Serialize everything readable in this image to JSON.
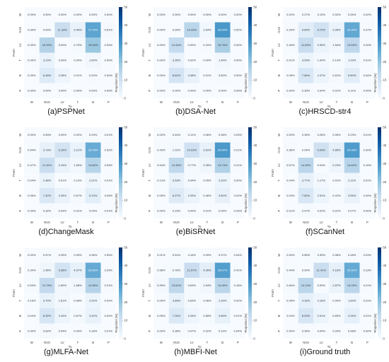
{
  "figure": {
    "categories": [
      "W",
      "NVS",
      "LV",
      "T",
      "B",
      "P"
    ],
    "xlabel": "To",
    "ylabel": "From",
    "colorbar_label": "Proportion (%)",
    "colorbar_ticks": [
      0,
      10,
      20,
      30,
      40,
      50
    ],
    "colormap": [
      "#f7fbff",
      "#deebf7",
      "#c6dbef",
      "#9ecae1",
      "#6baed6",
      "#4292c6",
      "#2171b5",
      "#08519c",
      "#08306b"
    ]
  },
  "chart_data": [
    {
      "type": "heatmap",
      "caption": "(a)PSPNet",
      "x": [
        "W",
        "NVS",
        "LV",
        "T",
        "B",
        "P"
      ],
      "y": [
        "W",
        "NVS",
        "LV",
        "T",
        "B",
        "P"
      ],
      "xlabel": "To",
      "ylabel": "From",
      "zlim": [
        0,
        50
      ],
      "values": [
        [
          "0.00%",
          "0.00%",
          "0.00%",
          "0.00%",
          "0.00%",
          "0.00%"
        ],
        [
          "0.00%",
          "0.00%",
          "11.33%",
          "3.49%",
          "27.15%",
          "0.61%"
        ],
        [
          "0.00%",
          "15.39%",
          "0.00%",
          "0.79%",
          "19.26%",
          "0.00%"
        ],
        [
          "0.00%",
          "3.23%",
          "0.09%",
          "0.00%",
          "1.60%",
          "0.00%"
        ],
        [
          "0.00%",
          "6.48%",
          "2.28%",
          "0.01%",
          "0.20%",
          "0.00%"
        ],
        [
          "0.00%",
          "0.00%",
          "0.00%",
          "0.00%",
          "0.00%",
          "0.00%"
        ]
      ]
    },
    {
      "type": "heatmap",
      "caption": "(b)DSA-Net",
      "x": [
        "W",
        "NVS",
        "LV",
        "T",
        "B",
        "P"
      ],
      "y": [
        "W",
        "NVS",
        "LV",
        "T",
        "B",
        "P"
      ],
      "xlabel": "To",
      "ylabel": "From",
      "zlim": [
        0,
        50
      ],
      "values": [
        [
          "0.00%",
          "0.00%",
          "0.00%",
          "0.00%",
          "0.00%",
          "0.00%"
        ],
        [
          "0.00%",
          "0.00%",
          "14.43%",
          "1.64%",
          "30.00%",
          "0.52%"
        ],
        [
          "0.00%",
          "12.64%",
          "0.00%",
          "0.20%",
          "16.76%",
          "0.00%"
        ],
        [
          "0.00%",
          "3.35%",
          "0.02%",
          "0.00%",
          "1.44%",
          "0.00%"
        ],
        [
          "0.00%",
          "8.81%",
          "3.38%",
          "0.01%",
          "0.82%",
          "0.00%"
        ],
        [
          "0.00%",
          "0.00%",
          "0.00%",
          "0.00%",
          "0.00%",
          "0.00%"
        ]
      ]
    },
    {
      "type": "heatmap",
      "caption": "(c)HRSCD-str4",
      "x": [
        "W",
        "NVS",
        "LV",
        "T",
        "B",
        "P"
      ],
      "y": [
        "W",
        "NVS",
        "LV",
        "T",
        "B",
        "P"
      ],
      "xlabel": "To",
      "ylabel": "From",
      "zlim": [
        0,
        50
      ],
      "values": [
        [
          "0.02%",
          "0.27%",
          "0.10%",
          "0.02%",
          "0.26%",
          "0.02%"
        ],
        [
          "0.29%",
          "5.60%",
          "9.72%",
          "3.28%",
          "26.30%",
          "0.37%"
        ],
        [
          "0.46%",
          "11.83%",
          "2.95%",
          "1.54%",
          "13.53%",
          "0.20%"
        ],
        [
          "0.01%",
          "3.09%",
          "1.00%",
          "0.13%",
          "1.93%",
          "0.01%"
        ],
        [
          "0.05%",
          "7.84%",
          "2.47%",
          "0.61%",
          "5.60%",
          "0.04%"
        ],
        [
          "0.00%",
          "0.30%",
          "0.04%",
          "0.01%",
          "0.11%",
          "0.00%"
        ]
      ]
    },
    {
      "type": "heatmap",
      "caption": "(d)ChangeMask",
      "x": [
        "W",
        "NVS",
        "LV",
        "T",
        "B",
        "P"
      ],
      "y": [
        "W",
        "NVS",
        "LV",
        "T",
        "B",
        "P"
      ],
      "xlabel": "To",
      "ylabel": "From",
      "zlim": [
        0,
        50
      ],
      "values": [
        [
          "0.00%",
          "0.53%",
          "0.09%",
          "0.02%",
          "0.29%",
          "0.01%"
        ],
        [
          "0.54%",
          "3.73%",
          "9.19%",
          "3.21%",
          "25.45%",
          "0.32%"
        ],
        [
          "0.47%",
          "11.32%",
          "3.15%",
          "1.54%",
          "14.82%",
          "0.09%"
        ],
        [
          "0.04%",
          "2.98%",
          "0.01%",
          "0.10%",
          "2.01%",
          "0.01%"
        ],
        [
          "0.06%",
          "7.42%",
          "3.28%",
          "0.67%",
          "5.13%",
          "0.05%"
        ],
        [
          "0.00%",
          "0.32%",
          "0.03%",
          "0.01%",
          "0.09%",
          "0.01%"
        ]
      ]
    },
    {
      "type": "heatmap",
      "caption": "(e)BiSRNet",
      "x": [
        "W",
        "NVS",
        "LV",
        "T",
        "B",
        "P"
      ],
      "y": [
        "W",
        "NVS",
        "LV",
        "T",
        "B",
        "P"
      ],
      "xlabel": "To",
      "ylabel": "From",
      "zlim": [
        0,
        50
      ],
      "values": [
        [
          "0.02%",
          "0.44%",
          "0.11%",
          "0.06%",
          "0.36%",
          "0.03%"
        ],
        [
          "0.43%",
          "1.01%",
          "10.03%",
          "3.81%",
          "29.65%",
          "0.21%"
        ],
        [
          "0.54%",
          "13.35%",
          "0.77%",
          "2.05%",
          "15.74%",
          "0.21%"
        ],
        [
          "0.13%",
          "3.53%",
          "0.94%",
          "0.05%",
          "2.52%",
          "0.00%"
        ],
        [
          "0.05%",
          "6.27%",
          "2.93%",
          "0.46%",
          "3.82%",
          "0.02%"
        ],
        [
          "0.00%",
          "0.23%",
          "0.00%",
          "0.01%",
          "0.09%",
          "0.03%"
        ]
      ]
    },
    {
      "type": "heatmap",
      "caption": "(f)SCanNet",
      "x": [
        "W",
        "NVS",
        "LV",
        "T",
        "B",
        "P"
      ],
      "y": [
        "W",
        "NVS",
        "LV",
        "T",
        "B",
        "P"
      ],
      "xlabel": "To",
      "ylabel": "From",
      "zlim": [
        0,
        50
      ],
      "values": [
        [
          "0.00%",
          "0.35%",
          "0.28%",
          "0.05%",
          "0.23%",
          "0.01%"
        ],
        [
          "0.36%",
          "0.04%",
          "9.93%",
          "4.85%",
          "29.08%",
          "0.30%"
        ],
        [
          "0.57%",
          "14.06%",
          "0.04%",
          "2.23%",
          "14.84%",
          "0.15%"
        ],
        [
          "0.04%",
          "3.77%",
          "1.17%",
          "0.01%",
          "2.11%",
          "0.01%"
        ],
        [
          "0.03%",
          "7.82%",
          "2.51%",
          "0.41%",
          "3.55%",
          "0.00%"
        ],
        [
          "0.01%",
          "0.47%",
          "0.02%",
          "0.01%",
          "0.07%",
          "0.00%"
        ]
      ]
    },
    {
      "type": "heatmap",
      "caption": "(g)MLFA-Net",
      "x": [
        "W",
        "NVS",
        "LV",
        "T",
        "B",
        "P"
      ],
      "y": [
        "W",
        "NVS",
        "LV",
        "T",
        "B",
        "P"
      ],
      "xlabel": "To",
      "ylabel": "From",
      "zlim": [
        0,
        50
      ],
      "values": [
        [
          "0.02%",
          "0.57%",
          "0.25%",
          "0.09%",
          "0.36%",
          "0.05%"
        ],
        [
          "0.34%",
          "1.96%",
          "9.38%",
          "4.07%",
          "25.80%",
          "0.29%"
        ],
        [
          "0.53%",
          "12.78%",
          "1.60%",
          "1.58%",
          "14.96%",
          "0.21%"
        ],
        [
          "0.16%",
          "3.70%",
          "1.61%",
          "0.08%",
          "2.52%",
          "0.02%"
        ],
        [
          "0.04%",
          "8.32%",
          "2.43%",
          "0.67%",
          "3.42%",
          "0.02%"
        ],
        [
          "0.00%",
          "0.62%",
          "0.04%",
          "0.04%",
          "0.18%",
          "0.01%"
        ]
      ]
    },
    {
      "type": "heatmap",
      "caption": "(h)MBFI-Net",
      "x": [
        "W",
        "NVS",
        "LV",
        "T",
        "B",
        "P"
      ],
      "y": [
        "W",
        "NVS",
        "LV",
        "T",
        "B",
        "P"
      ],
      "xlabel": "To",
      "ylabel": "From",
      "zlim": [
        0,
        50
      ],
      "values": [
        [
          "0.01%",
          "0.51%",
          "0.16%",
          "0.09%",
          "0.37%",
          "0.04%"
        ],
        [
          "0.58%",
          "0.76%",
          "11.57%",
          "4.95%",
          "28.67%",
          "0.41%"
        ],
        [
          "0.99%",
          "13.62%",
          "0.63%",
          "1.54%",
          "14.06%",
          "0.18%"
        ],
        [
          "0.09%",
          "3.89%",
          "0.63%",
          "0.06%",
          "2.30%",
          "0.02%"
        ],
        [
          "0.05%",
          "7.04%",
          "2.26%",
          "0.58%",
          "3.89%",
          "0.01%"
        ],
        [
          "0.00%",
          "0.36%",
          "0.07%",
          "0.02%",
          "0.14%",
          "0.04%"
        ]
      ]
    },
    {
      "type": "heatmap",
      "caption": "(i)Ground truth",
      "x": [
        "W",
        "NVS",
        "LV",
        "T",
        "B",
        "P"
      ],
      "y": [
        "W",
        "NVS",
        "LV",
        "T",
        "B",
        "P"
      ],
      "xlabel": "To",
      "ylabel": "From",
      "zlim": [
        0,
        50
      ],
      "values": [
        [
          "0.00%",
          "0.55%",
          "0.39%",
          "0.08%",
          "0.28%",
          "0.03%"
        ],
        [
          "0.44%",
          "0.00%",
          "11.41%",
          "4.16%",
          "25.92%",
          "0.23%"
        ],
        [
          "0.84%",
          "14.13%",
          "0.00%",
          "2.87%",
          "14.03%",
          "0.21%"
        ],
        [
          "0.05%",
          "4.18%",
          "2.16%",
          "0.00%",
          "1.83%",
          "0.01%"
        ],
        [
          "0.04%",
          "8.09%",
          "2.51%",
          "0.65%",
          "4.26%",
          "0.01%"
        ],
        [
          "0.00%",
          "0.34%",
          "0.04%",
          "0.04%",
          "0.08%",
          "0.00%"
        ]
      ]
    }
  ]
}
